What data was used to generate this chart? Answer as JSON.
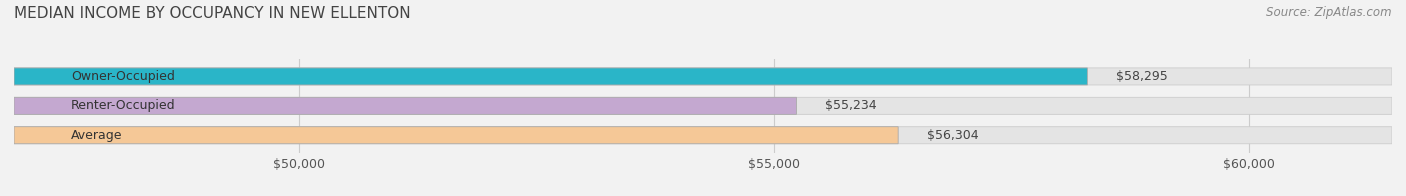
{
  "title": "MEDIAN INCOME BY OCCUPANCY IN NEW ELLENTON",
  "source": "Source: ZipAtlas.com",
  "categories": [
    "Owner-Occupied",
    "Renter-Occupied",
    "Average"
  ],
  "values": [
    58295,
    55234,
    56304
  ],
  "bar_colors": [
    "#2ab5c8",
    "#c4a8d0",
    "#f5c897"
  ],
  "value_labels": [
    "$58,295",
    "$55,234",
    "$56,304"
  ],
  "xlim": [
    47000,
    61500
  ],
  "xticks": [
    50000,
    55000,
    60000
  ],
  "xtick_labels": [
    "$50,000",
    "$55,000",
    "$60,000"
  ],
  "title_fontsize": 11,
  "label_fontsize": 9,
  "bar_label_fontsize": 9,
  "source_fontsize": 8.5,
  "bg_color": "#f2f2f2",
  "bar_bg_color": "#e4e4e4",
  "bar_height": 0.58
}
